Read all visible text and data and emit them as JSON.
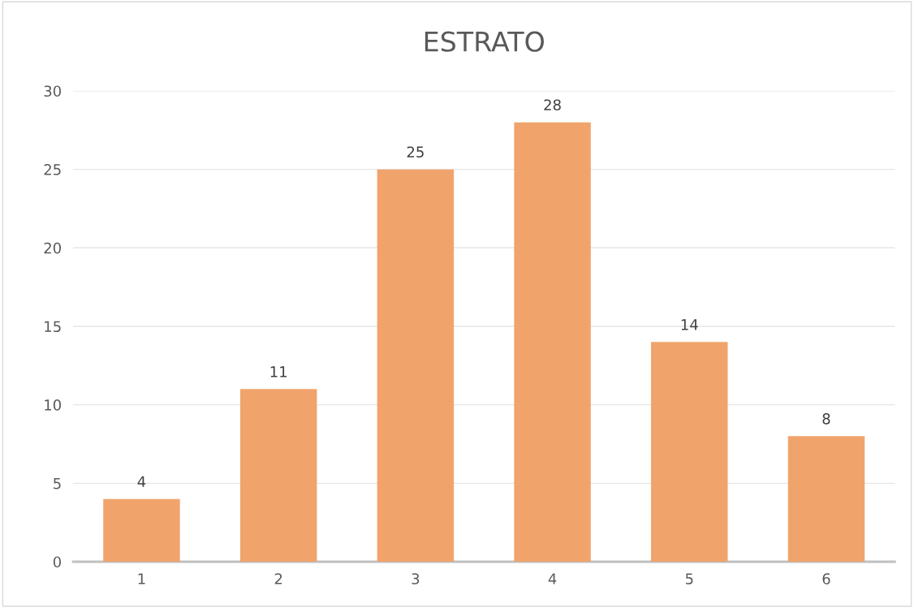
{
  "chart_data": {
    "type": "bar",
    "title": "ESTRATO",
    "categories": [
      "1",
      "2",
      "3",
      "4",
      "5",
      "6"
    ],
    "values": [
      4,
      11,
      25,
      28,
      14,
      8
    ],
    "color": "#f0a46c",
    "ylim": [
      0,
      30
    ],
    "yticks": [
      0,
      5,
      10,
      15,
      20,
      25,
      30
    ],
    "grid": "y",
    "data_labels": true,
    "legend": false
  }
}
